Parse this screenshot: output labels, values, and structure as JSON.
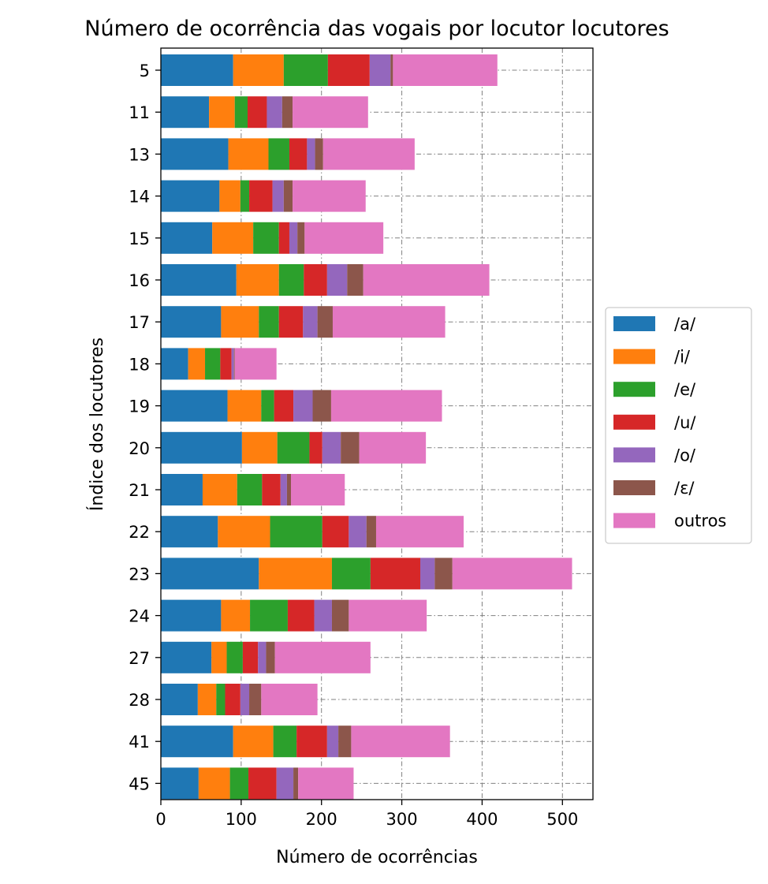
{
  "chart_data": {
    "type": "bar",
    "orientation": "horizontal",
    "stacked": true,
    "title": "Número de ocorrência das vogais por locutor locutores",
    "xlabel": "Número de ocorrências",
    "ylabel": "Índice dos locutores",
    "xlim": [
      0,
      538
    ],
    "xticks": [
      0,
      100,
      200,
      300,
      400,
      500
    ],
    "grid": true,
    "legend_position": "right",
    "categories": [
      "5",
      "11",
      "13",
      "14",
      "15",
      "16",
      "17",
      "18",
      "19",
      "20",
      "21",
      "22",
      "23",
      "24",
      "27",
      "28",
      "41",
      "45"
    ],
    "series": [
      {
        "name": "/a/",
        "color": "#1f77b4",
        "values": [
          90,
          60,
          84,
          73,
          64,
          94,
          75,
          34,
          83,
          101,
          52,
          71,
          122,
          75,
          63,
          46,
          90,
          47
        ]
      },
      {
        "name": "/i/",
        "color": "#ff7f0e",
        "values": [
          63,
          32,
          50,
          26,
          51,
          53,
          47,
          21,
          42,
          44,
          43,
          65,
          91,
          36,
          19,
          23,
          50,
          39
        ]
      },
      {
        "name": "/e/",
        "color": "#2ca02c",
        "values": [
          55,
          16,
          26,
          11,
          32,
          31,
          25,
          19,
          16,
          40,
          31,
          65,
          48,
          47,
          20,
          11,
          29,
          23
        ]
      },
      {
        "name": "/u/",
        "color": "#d62728",
        "values": [
          52,
          24,
          22,
          29,
          13,
          29,
          30,
          14,
          24,
          16,
          23,
          33,
          62,
          33,
          19,
          19,
          38,
          35
        ]
      },
      {
        "name": "/o/",
        "color": "#9467bd",
        "values": [
          26,
          19,
          10,
          14,
          10,
          25,
          18,
          3,
          24,
          23,
          8,
          22,
          18,
          22,
          10,
          11,
          14,
          21
        ]
      },
      {
        "name": "/ɛ/",
        "color": "#8c564b",
        "values": [
          3,
          13,
          10,
          11,
          9,
          20,
          19,
          1,
          23,
          23,
          5,
          12,
          22,
          21,
          11,
          15,
          16,
          6
        ]
      },
      {
        "name": "outros",
        "color": "#e377c2",
        "values": [
          130,
          94,
          114,
          91,
          98,
          157,
          140,
          52,
          138,
          83,
          67,
          109,
          149,
          97,
          119,
          70,
          123,
          69
        ]
      }
    ]
  }
}
